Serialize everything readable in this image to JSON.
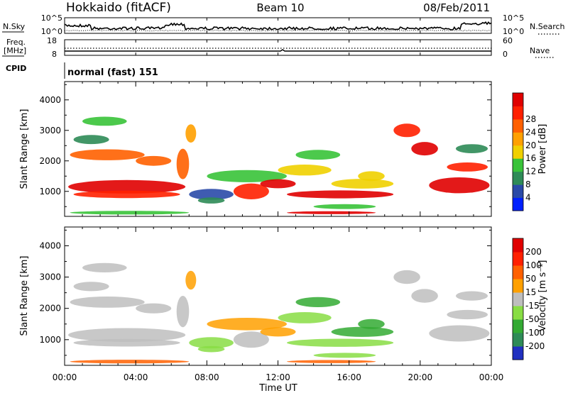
{
  "header": {
    "station": "Hokkaido (fitACF)",
    "beam": "Beam 10",
    "date": "08/Feb/2011"
  },
  "noise_panel": {
    "left_label": "N.Sky",
    "right_label": "N.Search",
    "left_ticks": [
      "10^5",
      "10^0"
    ],
    "right_ticks": [
      "10^5",
      "10^0"
    ]
  },
  "freq_panel": {
    "left_label_line1": "Freq.",
    "left_label_line2": "[MHz]",
    "right_label": "Nave",
    "left_ticks": [
      "18",
      "8"
    ],
    "right_ticks": [
      "60",
      "0"
    ]
  },
  "cpid_panel": {
    "label": "CPID",
    "text": "normal (fast) 151"
  },
  "x_axis": {
    "label": "Time UT",
    "ticks": [
      "00:00",
      "04:00",
      "08:00",
      "12:00",
      "16:00",
      "20:00",
      "00:00"
    ]
  },
  "chart_data": [
    {
      "type": "heatmap",
      "panel": "power",
      "ylabel": "Slant Range [km]",
      "yticks": [
        1000,
        2000,
        3000,
        4000
      ],
      "ylim": [
        180,
        4600
      ],
      "xlim_hours": [
        0,
        24
      ],
      "colorbar": {
        "label": "Power [dB]",
        "tick_labels": [
          "4",
          "8",
          "12",
          "16",
          "20",
          "24",
          "28"
        ],
        "colors": [
          "#0020ff",
          "#2a4aa8",
          "#2e8b57",
          "#39c339",
          "#f0d000",
          "#ffa000",
          "#ff6000",
          "#ff2000",
          "#e00000"
        ]
      }
    },
    {
      "type": "heatmap",
      "panel": "velocity",
      "ylabel": "Slant Range [km]",
      "yticks": [
        1000,
        2000,
        3000,
        4000
      ],
      "ylim": [
        180,
        4600
      ],
      "xlim_hours": [
        0,
        24
      ],
      "colorbar": {
        "label": "Velocity [m s⁻¹]",
        "tick_labels": [
          "200",
          "100",
          "50",
          "15",
          "-15",
          "-50",
          "-100",
          "-200"
        ],
        "colors": [
          "#2030c0",
          "#2e8b57",
          "#33aa33",
          "#88dd44",
          "#bebebe",
          "#ffa000",
          "#ff6000",
          "#ff2000",
          "#e00000"
        ]
      }
    }
  ]
}
